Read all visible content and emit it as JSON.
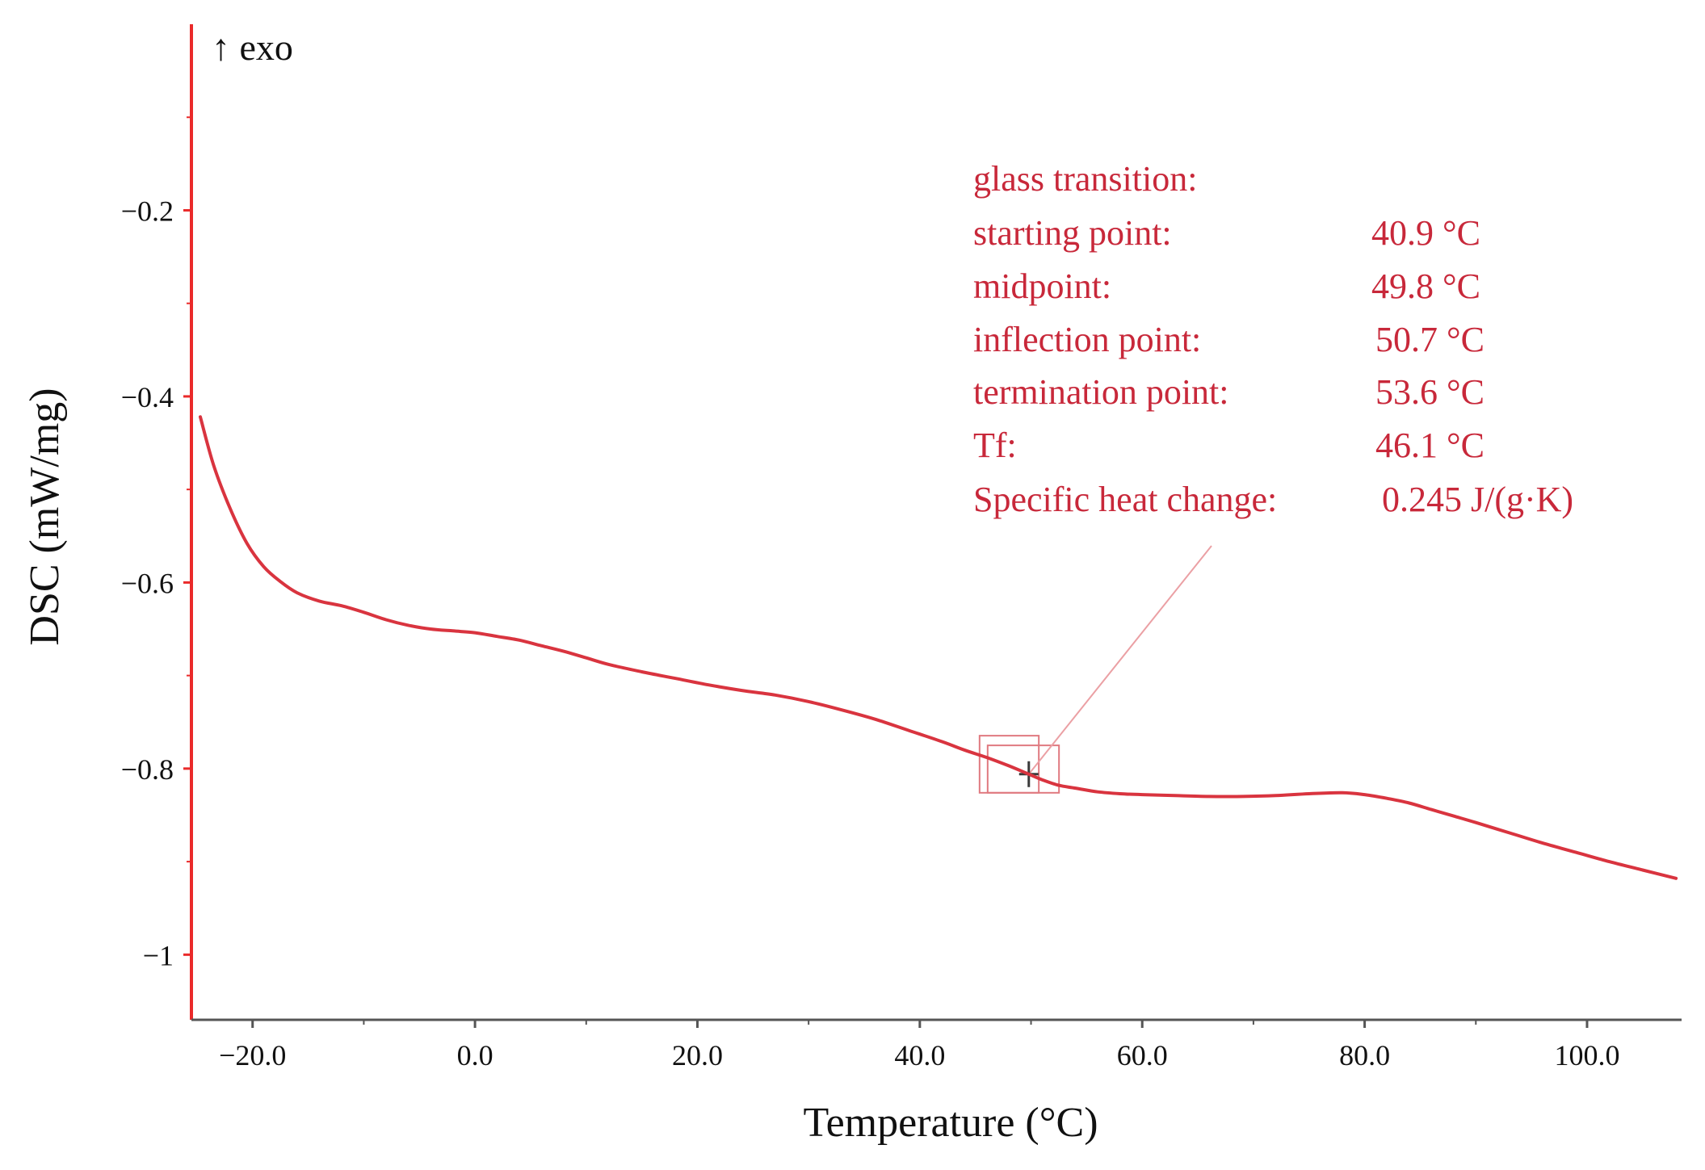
{
  "chart_data": {
    "type": "line",
    "title": "",
    "xlabel": "Temperature (°C)",
    "ylabel": "DSC (mW/mg)",
    "exo_label": "↑ exo",
    "xlim": [
      -25.5,
      108.5
    ],
    "ylim": [
      -1.07,
      0.0
    ],
    "x_ticks": [
      -20,
      0,
      20,
      40,
      60,
      80,
      100
    ],
    "x_tick_labels": [
      "−20.0",
      "0.0",
      "20.0",
      "40.0",
      "60.0",
      "80.0",
      "100.0"
    ],
    "y_ticks": [
      -0.2,
      -0.4,
      -0.6,
      -0.8,
      -1.0
    ],
    "y_tick_labels": [
      "−0.2",
      "−0.4",
      "−0.6",
      "−0.8",
      "−1"
    ],
    "grid": false,
    "series": [
      {
        "name": "DSC curve",
        "color": "#d9343f",
        "x": [
          -24.7,
          -23.5,
          -22.0,
          -20.5,
          -19.0,
          -17.5,
          -16.0,
          -14.0,
          -12.0,
          -10.0,
          -8.0,
          -6.0,
          -4.0,
          -2.0,
          0.0,
          2.0,
          4.0,
          6.0,
          8.0,
          10.0,
          12.0,
          15.0,
          18.0,
          21.0,
          24.0,
          27.0,
          30.0,
          33.0,
          36.0,
          39.0,
          42.0,
          44.0,
          46.0,
          48.0,
          49.8,
          51.0,
          52.5,
          54.0,
          56.0,
          58.0,
          60.0,
          63.0,
          66.0,
          69.0,
          72.0,
          75.0,
          78.0,
          80.0,
          82.0,
          84.0,
          86.0,
          88.0,
          90.0,
          93.0,
          96.0,
          99.0,
          102.0,
          105.0,
          108.0
        ],
        "y": [
          -0.422,
          -0.474,
          -0.521,
          -0.558,
          -0.583,
          -0.599,
          -0.611,
          -0.62,
          -0.625,
          -0.632,
          -0.64,
          -0.646,
          -0.65,
          -0.652,
          -0.654,
          -0.658,
          -0.662,
          -0.668,
          -0.674,
          -0.681,
          -0.688,
          -0.696,
          -0.703,
          -0.71,
          -0.716,
          -0.721,
          -0.728,
          -0.737,
          -0.747,
          -0.759,
          -0.771,
          -0.78,
          -0.788,
          -0.797,
          -0.806,
          -0.812,
          -0.818,
          -0.821,
          -0.825,
          -0.827,
          -0.828,
          -0.829,
          -0.83,
          -0.83,
          -0.829,
          -0.827,
          -0.826,
          -0.828,
          -0.832,
          -0.837,
          -0.844,
          -0.851,
          -0.858,
          -0.869,
          -0.88,
          -0.89,
          -0.9,
          -0.909,
          -0.918
        ]
      }
    ],
    "annotation": {
      "title": "glass transition:",
      "rows": [
        {
          "label": "starting point:",
          "value": "40.9 °C"
        },
        {
          "label": "midpoint:",
          "value": "49.8 °C"
        },
        {
          "label": "inflection point:",
          "value": "50.7 °C"
        },
        {
          "label": "termination point:",
          "value": "53.6 °C"
        },
        {
          "label": "Tf:",
          "value": "46.1 °C"
        },
        {
          "label": "Specific heat change:",
          "value": "0.245 J/(g·K)"
        }
      ],
      "target_x": 49.8,
      "target_y": -0.806,
      "marker_box_x": [
        46.1,
        50.7
      ],
      "marker_box_y": [
        -0.782,
        -0.826
      ]
    },
    "colors": {
      "axis": "#ea2a2a",
      "curve": "#d9343f",
      "text": "#111111",
      "annotation": "#c8283a",
      "marker": "#3a3a3a"
    }
  }
}
